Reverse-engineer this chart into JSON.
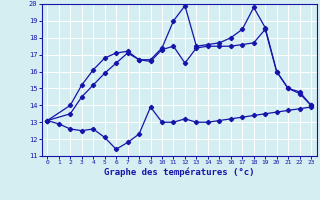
{
  "title": "Graphe des températures (°c)",
  "xlim": [
    -0.5,
    23.5
  ],
  "ylim": [
    11,
    20
  ],
  "xticks": [
    0,
    1,
    2,
    3,
    4,
    5,
    6,
    7,
    8,
    9,
    10,
    11,
    12,
    13,
    14,
    15,
    16,
    17,
    18,
    19,
    20,
    21,
    22,
    23
  ],
  "yticks": [
    11,
    12,
    13,
    14,
    15,
    16,
    17,
    18,
    19,
    20
  ],
  "background_color": "#d4eef2",
  "line_color": "#1515aa",
  "grid_color": "#b8d8e0",
  "series1_x": [
    0,
    1,
    2,
    3,
    4,
    5,
    6,
    7,
    8,
    9,
    10,
    11,
    12,
    13,
    14,
    15,
    16,
    17,
    18,
    19,
    20,
    21,
    22,
    23
  ],
  "series1_y": [
    13.1,
    12.9,
    12.6,
    12.5,
    12.6,
    12.1,
    11.4,
    11.8,
    12.3,
    13.9,
    13.0,
    13.0,
    13.2,
    13.0,
    13.0,
    13.1,
    13.2,
    13.3,
    13.4,
    13.5,
    13.6,
    13.7,
    13.8,
    13.9
  ],
  "series2_x": [
    0,
    2,
    3,
    4,
    5,
    6,
    7,
    8,
    9,
    10,
    11,
    12,
    13,
    14,
    15,
    16,
    17,
    18,
    19,
    20,
    21,
    22,
    23
  ],
  "series2_y": [
    13.1,
    13.5,
    14.5,
    15.2,
    15.9,
    16.5,
    17.1,
    16.7,
    16.6,
    17.3,
    17.5,
    16.5,
    17.4,
    17.5,
    17.5,
    17.5,
    17.6,
    17.7,
    18.5,
    16.0,
    15.0,
    14.7,
    14.0
  ],
  "series3_x": [
    0,
    2,
    3,
    4,
    5,
    6,
    7,
    8,
    9,
    10,
    11,
    12,
    13,
    14,
    15,
    16,
    17,
    18,
    19,
    20,
    21,
    22,
    23
  ],
  "series3_y": [
    13.1,
    14.0,
    15.2,
    16.1,
    16.8,
    17.1,
    17.2,
    16.7,
    16.7,
    17.4,
    19.0,
    19.9,
    17.5,
    17.6,
    17.7,
    18.0,
    18.5,
    19.8,
    18.6,
    16.0,
    15.0,
    14.8,
    14.0
  ]
}
